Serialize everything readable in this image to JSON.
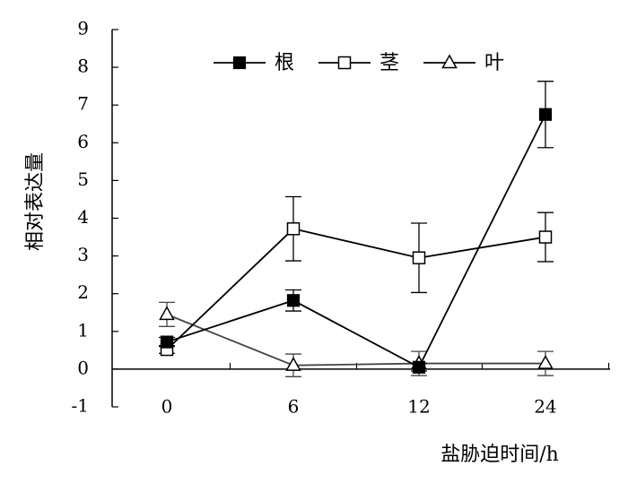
{
  "chart_data": {
    "type": "line",
    "title": "",
    "xlabel": "盐胁迫时间/h",
    "ylabel": "相对表达量",
    "categories": [
      "0",
      "6",
      "12",
      "24"
    ],
    "ylim": [
      -1,
      9
    ],
    "yticks": [
      "-1",
      "0",
      "1",
      "2",
      "3",
      "4",
      "5",
      "6",
      "7",
      "8",
      "9"
    ],
    "grid": false,
    "legend_position": "top-right",
    "series": [
      {
        "name": "根",
        "marker": "filled-square",
        "values": [
          0.72,
          1.82,
          0.05,
          6.75
        ],
        "errors": [
          0.12,
          0.28,
          0.1,
          0.88
        ]
      },
      {
        "name": "茎",
        "marker": "open-square",
        "values": [
          0.52,
          3.72,
          2.95,
          3.5
        ],
        "errors": [
          0.1,
          0.85,
          0.92,
          0.65
        ]
      },
      {
        "name": "叶",
        "marker": "open-triangle",
        "values": [
          1.45,
          0.1,
          0.15,
          0.15
        ],
        "errors": [
          0.32,
          0.3,
          0.32,
          0.32
        ]
      }
    ]
  },
  "colors": {
    "axis": "#000000",
    "line": "#000000",
    "line_ye": "#444444",
    "marker_fill": "#000000",
    "background": "#ffffff"
  }
}
